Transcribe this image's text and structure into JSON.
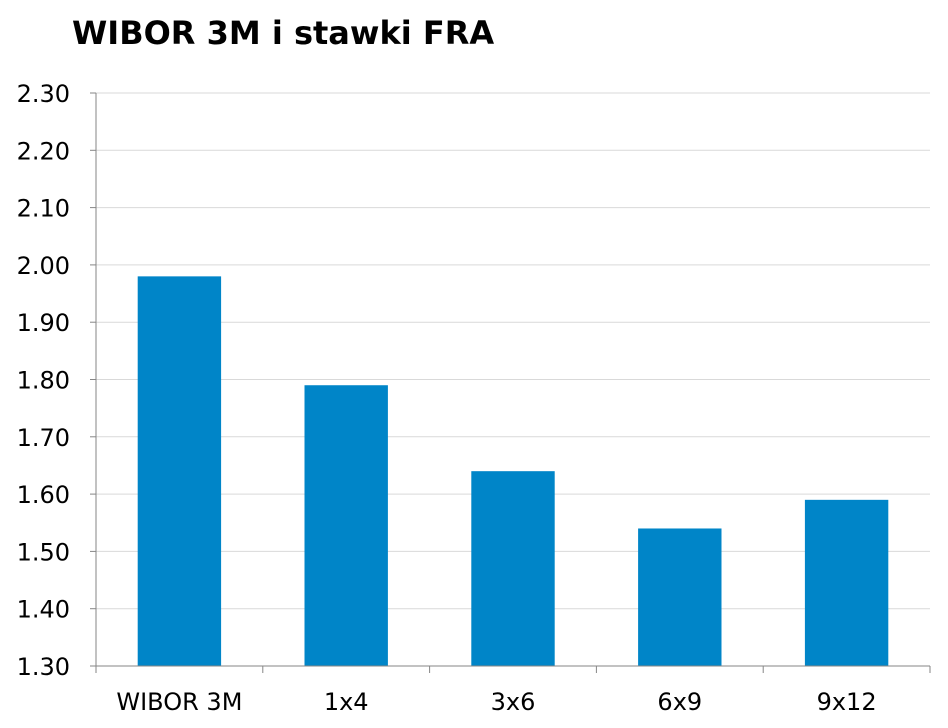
{
  "chart_data": {
    "type": "bar",
    "title": "WIBOR 3M i stawki FRA",
    "xlabel": "",
    "ylabel": "",
    "categories": [
      "WIBOR 3M",
      "1x4",
      "3x6",
      "6x9",
      "9x12"
    ],
    "values": [
      1.98,
      1.79,
      1.64,
      1.54,
      1.59
    ],
    "ylim": [
      1.3,
      2.3
    ],
    "yticks": [
      "1.30",
      "1.40",
      "1.50",
      "1.60",
      "1.70",
      "1.80",
      "1.90",
      "2.00",
      "2.10",
      "2.20",
      "2.30"
    ],
    "grid": true,
    "legend": "none",
    "bar_color": "#0085C8",
    "grid_color": "#D9D9D9",
    "axis_color": "#868686"
  }
}
